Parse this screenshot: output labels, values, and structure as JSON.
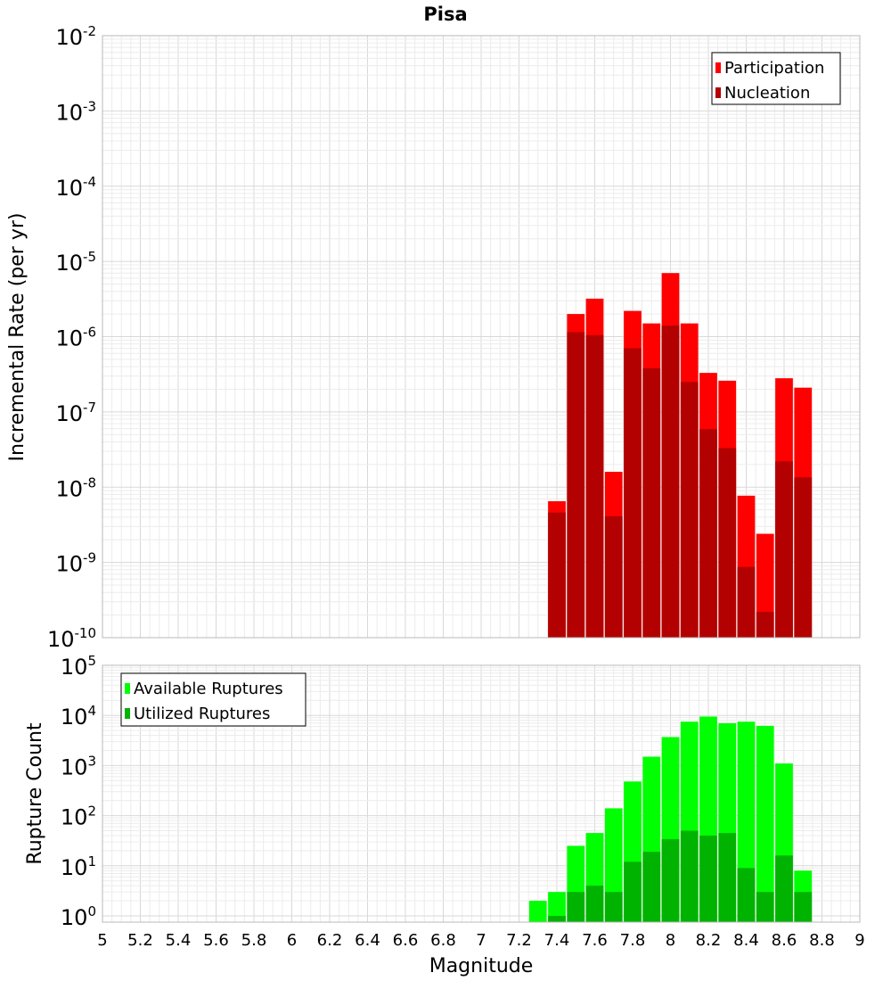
{
  "chart_data": [
    {
      "type": "bar",
      "title": "Pisa",
      "xlabel": "",
      "ylabel": "Incremental Rate (per yr)",
      "yscale": "log",
      "ylim": [
        1e-10,
        0.01
      ],
      "xlim": [
        5,
        9
      ],
      "grid": true,
      "legend_position": "top-right",
      "y_ticks": [
        {
          "base": "10",
          "exp": "-2"
        },
        {
          "base": "10",
          "exp": "-3"
        },
        {
          "base": "10",
          "exp": "-4"
        },
        {
          "base": "10",
          "exp": "-5"
        },
        {
          "base": "10",
          "exp": "-6"
        },
        {
          "base": "10",
          "exp": "-7"
        },
        {
          "base": "10",
          "exp": "-8"
        },
        {
          "base": "10",
          "exp": "-9"
        },
        {
          "base": "10",
          "exp": "-10"
        }
      ],
      "x": [
        7.4,
        7.5,
        7.6,
        7.7,
        7.8,
        7.9,
        8.0,
        8.1,
        8.2,
        8.3,
        8.4,
        8.5,
        8.6,
        8.7
      ],
      "series": [
        {
          "name": "Participation",
          "color": "#ff0000",
          "values": [
            6.5e-09,
            2e-06,
            3.2e-06,
            1.6e-08,
            2.2e-06,
            1.5e-06,
            7e-06,
            1.5e-06,
            3.3e-07,
            2.6e-07,
            7.7e-09,
            2.4e-09,
            2.8e-07,
            2.1e-07
          ]
        },
        {
          "name": "Nucleation",
          "color": "#b30000",
          "values": [
            4.6e-09,
            1.15e-06,
            1.05e-06,
            4.1e-09,
            7e-07,
            3.8e-07,
            1.4e-06,
            2.5e-07,
            5.9e-08,
            3.3e-08,
            8.7e-10,
            2.2e-10,
            2.2e-08,
            1.35e-08
          ]
        }
      ]
    },
    {
      "type": "bar",
      "title": "",
      "xlabel": "Magnitude",
      "ylabel": "Rupture Count",
      "yscale": "log",
      "ylim": [
        0.75,
        100000.0
      ],
      "xlim": [
        5,
        9
      ],
      "grid": true,
      "legend_position": "top-left",
      "y_ticks": [
        {
          "base": "10",
          "exp": "5"
        },
        {
          "base": "10",
          "exp": "4"
        },
        {
          "base": "10",
          "exp": "3"
        },
        {
          "base": "10",
          "exp": "2"
        },
        {
          "base": "10",
          "exp": "1"
        },
        {
          "base": "10",
          "exp": "0"
        }
      ],
      "x_tick_labels": [
        "5",
        "5.2",
        "5.4",
        "5.6",
        "5.8",
        "6",
        "6.2",
        "6.4",
        "6.6",
        "6.8",
        "7",
        "7.2",
        "7.4",
        "7.6",
        "7.8",
        "8",
        "8.2",
        "8.4",
        "8.6",
        "8.8",
        "9"
      ],
      "x": [
        7.3,
        7.4,
        7.5,
        7.6,
        7.7,
        7.8,
        7.9,
        8.0,
        8.1,
        8.2,
        8.3,
        8.4,
        8.5,
        8.6,
        8.7
      ],
      "series": [
        {
          "name": "Available Ruptures",
          "color": "#00ff00",
          "values": [
            2,
            3,
            25,
            45,
            140,
            480,
            1500,
            3700,
            7500,
            9500,
            7000,
            7500,
            6200,
            1100,
            8
          ]
        },
        {
          "name": "Utilized Ruptures",
          "color": "#00b300",
          "values": [
            null,
            1,
            3,
            4,
            3,
            12,
            19,
            34,
            50,
            40,
            45,
            9,
            3,
            16,
            3
          ]
        }
      ]
    }
  ]
}
